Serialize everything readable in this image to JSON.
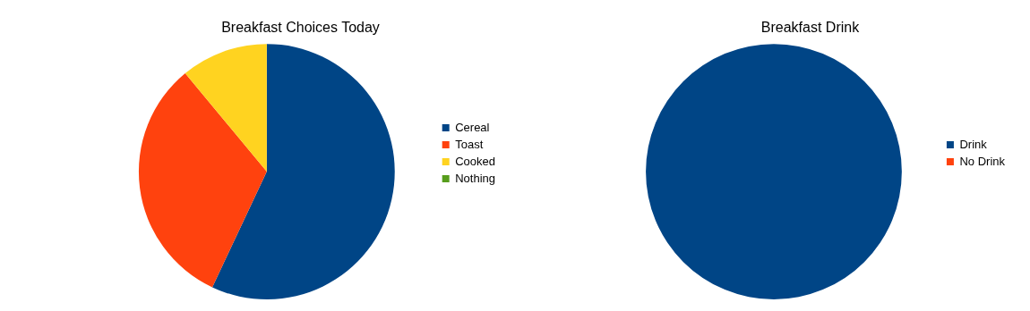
{
  "chart_data": [
    {
      "type": "pie",
      "title": "Breakfast Choices Today",
      "categories": [
        "Cereal",
        "Toast",
        "Cooked",
        "Nothing"
      ],
      "values": [
        57,
        32,
        11,
        0
      ],
      "colors": [
        "#004586",
        "#ff420e",
        "#ffd320",
        "#579d1c"
      ],
      "legend": "right"
    },
    {
      "type": "pie",
      "title": "Breakfast Drink",
      "categories": [
        "Drink",
        "No Drink"
      ],
      "values": [
        100,
        0
      ],
      "colors": [
        "#004586",
        "#ff420e"
      ],
      "legend": "right"
    }
  ]
}
